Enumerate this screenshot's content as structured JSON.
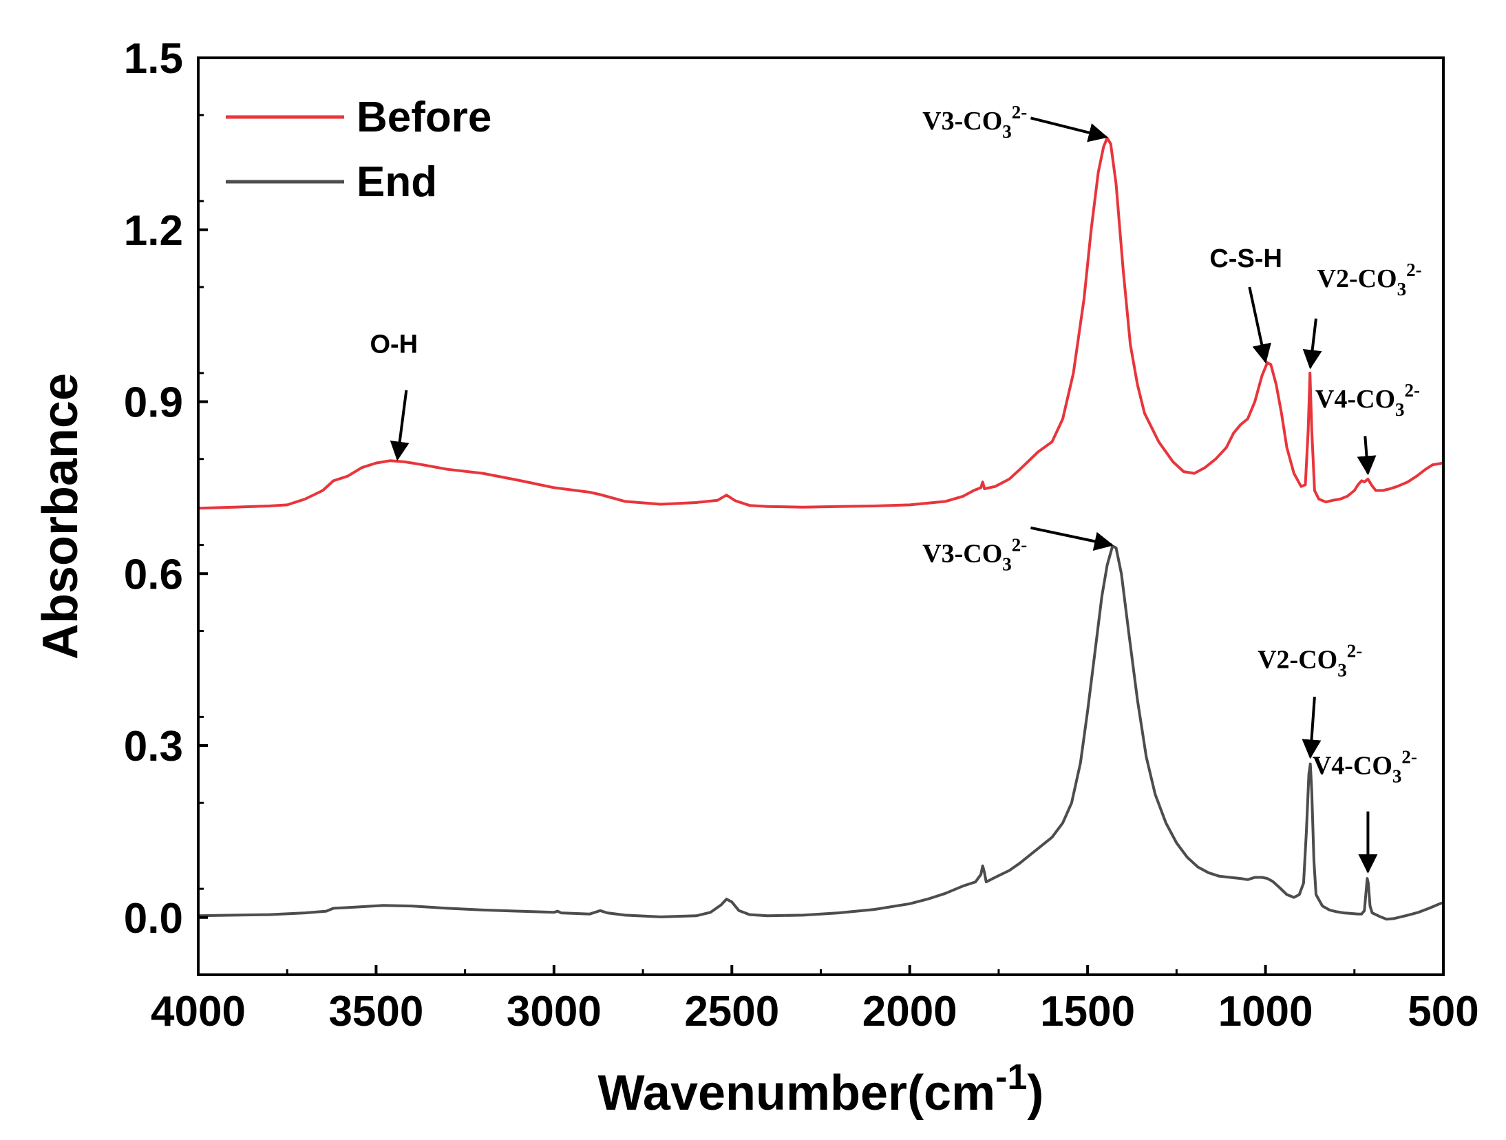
{
  "chart_data": {
    "type": "line",
    "xlabel": "Wavenumber(cm",
    "xlabel_sup": "-1",
    "xlabel_end": ")",
    "ylabel": "Absorbance",
    "xlim": [
      4000,
      500
    ],
    "ylim": [
      -0.1,
      1.5
    ],
    "x_ticks": [
      4000,
      3500,
      3000,
      2500,
      2000,
      1500,
      1000,
      500
    ],
    "x_tick_labels": [
      "4000",
      "3500",
      "3000",
      "2500",
      "2000",
      "1500",
      "1000",
      "500"
    ],
    "y_ticks": [
      0.0,
      0.3,
      0.6,
      0.9,
      1.2,
      1.5
    ],
    "y_tick_labels": [
      "0.0",
      "0.3",
      "0.6",
      "0.9",
      "1.2",
      "1.5"
    ],
    "legend_position": "top-left",
    "series": [
      {
        "name": "Before",
        "color": "#e8353b",
        "points": [
          [
            4000,
            0.714
          ],
          [
            3900,
            0.716
          ],
          [
            3800,
            0.718
          ],
          [
            3750,
            0.72
          ],
          [
            3700,
            0.73
          ],
          [
            3650,
            0.745
          ],
          [
            3620,
            0.762
          ],
          [
            3580,
            0.77
          ],
          [
            3540,
            0.785
          ],
          [
            3500,
            0.793
          ],
          [
            3460,
            0.797
          ],
          [
            3420,
            0.795
          ],
          [
            3380,
            0.791
          ],
          [
            3300,
            0.782
          ],
          [
            3200,
            0.775
          ],
          [
            3100,
            0.763
          ],
          [
            3000,
            0.75
          ],
          [
            2900,
            0.742
          ],
          [
            2870,
            0.738
          ],
          [
            2800,
            0.726
          ],
          [
            2700,
            0.721
          ],
          [
            2600,
            0.724
          ],
          [
            2540,
            0.728
          ],
          [
            2515,
            0.737
          ],
          [
            2490,
            0.727
          ],
          [
            2450,
            0.719
          ],
          [
            2400,
            0.717
          ],
          [
            2300,
            0.716
          ],
          [
            2200,
            0.717
          ],
          [
            2100,
            0.718
          ],
          [
            2000,
            0.72
          ],
          [
            1900,
            0.726
          ],
          [
            1850,
            0.735
          ],
          [
            1820,
            0.745
          ],
          [
            1800,
            0.75
          ],
          [
            1795,
            0.76
          ],
          [
            1790,
            0.748
          ],
          [
            1760,
            0.752
          ],
          [
            1720,
            0.765
          ],
          [
            1690,
            0.782
          ],
          [
            1660,
            0.8
          ],
          [
            1640,
            0.812
          ],
          [
            1600,
            0.83
          ],
          [
            1570,
            0.87
          ],
          [
            1540,
            0.95
          ],
          [
            1510,
            1.08
          ],
          [
            1490,
            1.2
          ],
          [
            1470,
            1.3
          ],
          [
            1455,
            1.345
          ],
          [
            1445,
            1.36
          ],
          [
            1435,
            1.35
          ],
          [
            1420,
            1.28
          ],
          [
            1400,
            1.13
          ],
          [
            1380,
            1.0
          ],
          [
            1360,
            0.93
          ],
          [
            1340,
            0.88
          ],
          [
            1300,
            0.83
          ],
          [
            1260,
            0.795
          ],
          [
            1230,
            0.778
          ],
          [
            1200,
            0.775
          ],
          [
            1170,
            0.785
          ],
          [
            1140,
            0.8
          ],
          [
            1110,
            0.82
          ],
          [
            1090,
            0.845
          ],
          [
            1070,
            0.86
          ],
          [
            1050,
            0.87
          ],
          [
            1030,
            0.9
          ],
          [
            1010,
            0.945
          ],
          [
            995,
            0.968
          ],
          [
            985,
            0.965
          ],
          [
            970,
            0.93
          ],
          [
            955,
            0.88
          ],
          [
            940,
            0.82
          ],
          [
            920,
            0.775
          ],
          [
            900,
            0.752
          ],
          [
            888,
            0.755
          ],
          [
            880,
            0.85
          ],
          [
            875,
            0.95
          ],
          [
            870,
            0.85
          ],
          [
            862,
            0.745
          ],
          [
            850,
            0.73
          ],
          [
            830,
            0.725
          ],
          [
            810,
            0.728
          ],
          [
            790,
            0.73
          ],
          [
            770,
            0.735
          ],
          [
            750,
            0.745
          ],
          [
            740,
            0.755
          ],
          [
            730,
            0.762
          ],
          [
            722,
            0.76
          ],
          [
            712,
            0.765
          ],
          [
            700,
            0.753
          ],
          [
            690,
            0.745
          ],
          [
            670,
            0.745
          ],
          [
            650,
            0.748
          ],
          [
            630,
            0.752
          ],
          [
            600,
            0.76
          ],
          [
            575,
            0.77
          ],
          [
            550,
            0.782
          ],
          [
            530,
            0.79
          ],
          [
            500,
            0.793
          ]
        ]
      },
      {
        "name": "End",
        "color": "#4d4d4d",
        "points": [
          [
            4000,
            0.003
          ],
          [
            3900,
            0.004
          ],
          [
            3800,
            0.005
          ],
          [
            3700,
            0.008
          ],
          [
            3640,
            0.011
          ],
          [
            3620,
            0.016
          ],
          [
            3560,
            0.018
          ],
          [
            3480,
            0.021
          ],
          [
            3400,
            0.02
          ],
          [
            3300,
            0.016
          ],
          [
            3200,
            0.013
          ],
          [
            3100,
            0.011
          ],
          [
            3000,
            0.009
          ],
          [
            2990,
            0.011
          ],
          [
            2980,
            0.008
          ],
          [
            2900,
            0.006
          ],
          [
            2870,
            0.012
          ],
          [
            2850,
            0.008
          ],
          [
            2800,
            0.004
          ],
          [
            2700,
            0.001
          ],
          [
            2600,
            0.003
          ],
          [
            2560,
            0.009
          ],
          [
            2530,
            0.022
          ],
          [
            2515,
            0.032
          ],
          [
            2500,
            0.027
          ],
          [
            2480,
            0.012
          ],
          [
            2450,
            0.005
          ],
          [
            2400,
            0.003
          ],
          [
            2300,
            0.004
          ],
          [
            2200,
            0.008
          ],
          [
            2100,
            0.014
          ],
          [
            2000,
            0.024
          ],
          [
            1950,
            0.032
          ],
          [
            1900,
            0.042
          ],
          [
            1850,
            0.055
          ],
          [
            1815,
            0.062
          ],
          [
            1800,
            0.075
          ],
          [
            1795,
            0.09
          ],
          [
            1790,
            0.078
          ],
          [
            1785,
            0.062
          ],
          [
            1760,
            0.07
          ],
          [
            1720,
            0.082
          ],
          [
            1690,
            0.095
          ],
          [
            1660,
            0.11
          ],
          [
            1630,
            0.125
          ],
          [
            1600,
            0.14
          ],
          [
            1570,
            0.165
          ],
          [
            1545,
            0.2
          ],
          [
            1520,
            0.27
          ],
          [
            1500,
            0.36
          ],
          [
            1480,
            0.46
          ],
          [
            1460,
            0.56
          ],
          [
            1445,
            0.615
          ],
          [
            1430,
            0.648
          ],
          [
            1420,
            0.645
          ],
          [
            1405,
            0.6
          ],
          [
            1385,
            0.5
          ],
          [
            1360,
            0.38
          ],
          [
            1335,
            0.28
          ],
          [
            1310,
            0.215
          ],
          [
            1280,
            0.165
          ],
          [
            1250,
            0.13
          ],
          [
            1220,
            0.105
          ],
          [
            1190,
            0.088
          ],
          [
            1160,
            0.078
          ],
          [
            1130,
            0.072
          ],
          [
            1100,
            0.07
          ],
          [
            1070,
            0.068
          ],
          [
            1050,
            0.066
          ],
          [
            1030,
            0.07
          ],
          [
            1010,
            0.07
          ],
          [
            995,
            0.068
          ],
          [
            980,
            0.063
          ],
          [
            960,
            0.052
          ],
          [
            940,
            0.04
          ],
          [
            920,
            0.035
          ],
          [
            905,
            0.04
          ],
          [
            893,
            0.06
          ],
          [
            885,
            0.15
          ],
          [
            878,
            0.25
          ],
          [
            874,
            0.268
          ],
          [
            870,
            0.22
          ],
          [
            864,
            0.1
          ],
          [
            858,
            0.04
          ],
          [
            840,
            0.02
          ],
          [
            820,
            0.013
          ],
          [
            800,
            0.01
          ],
          [
            780,
            0.008
          ],
          [
            760,
            0.007
          ],
          [
            740,
            0.006
          ],
          [
            730,
            0.006
          ],
          [
            722,
            0.012
          ],
          [
            718,
            0.04
          ],
          [
            714,
            0.068
          ],
          [
            711,
            0.06
          ],
          [
            706,
            0.02
          ],
          [
            700,
            0.008
          ],
          [
            680,
            0.002
          ],
          [
            660,
            -0.003
          ],
          [
            640,
            -0.002
          ],
          [
            620,
            0.001
          ],
          [
            600,
            0.004
          ],
          [
            570,
            0.009
          ],
          [
            540,
            0.016
          ],
          [
            510,
            0.024
          ],
          [
            500,
            0.026
          ]
        ]
      }
    ],
    "annotations": [
      {
        "text": "O-H",
        "style": "sans",
        "x": 3450,
        "y": 0.985,
        "anchor": "middle",
        "arrow": [
          [
            3415,
            0.92
          ],
          [
            3440,
            0.8
          ]
        ]
      },
      {
        "text": "V3-CO",
        "sub": "3",
        "sup": "2-",
        "style": "serif",
        "x": 1670,
        "y": 1.375,
        "anchor": "end",
        "arrow": [
          [
            1660,
            1.395
          ],
          [
            1448,
            1.362
          ]
        ]
      },
      {
        "text": "C-S-H",
        "style": "sans",
        "x": 1055,
        "y": 1.135,
        "anchor": "middle",
        "arrow": [
          [
            1045,
            1.1
          ],
          [
            1000,
            0.97
          ]
        ]
      },
      {
        "text": "V2-CO",
        "sub": "3",
        "sup": "2-",
        "style": "serif",
        "x": 855,
        "y": 1.1,
        "anchor": "start",
        "arrow": [
          [
            858,
            1.045
          ],
          [
            874,
            0.96
          ]
        ]
      },
      {
        "text": "V4-CO",
        "sub": "3",
        "sup": "2-",
        "style": "serif",
        "x": 860,
        "y": 0.89,
        "anchor": "start",
        "arrow": [
          [
            720,
            0.84
          ],
          [
            712,
            0.775
          ]
        ]
      },
      {
        "text": "V3-CO",
        "sub": "3",
        "sup": "2-",
        "style": "serif",
        "x": 1670,
        "y": 0.62,
        "anchor": "end",
        "arrow": [
          [
            1660,
            0.68
          ],
          [
            1432,
            0.65
          ]
        ]
      },
      {
        "text": "V2-CO",
        "sub": "3",
        "sup": "2-",
        "style": "serif",
        "x": 875,
        "y": 0.435,
        "anchor": "middle",
        "arrow": [
          [
            862,
            0.385
          ],
          [
            874,
            0.28
          ]
        ]
      },
      {
        "text": "V4-CO",
        "sub": "3",
        "sup": "2-",
        "style": "serif",
        "x": 868,
        "y": 0.25,
        "anchor": "start",
        "arrow": [
          [
            712,
            0.185
          ],
          [
            712,
            0.08
          ]
        ]
      }
    ]
  }
}
